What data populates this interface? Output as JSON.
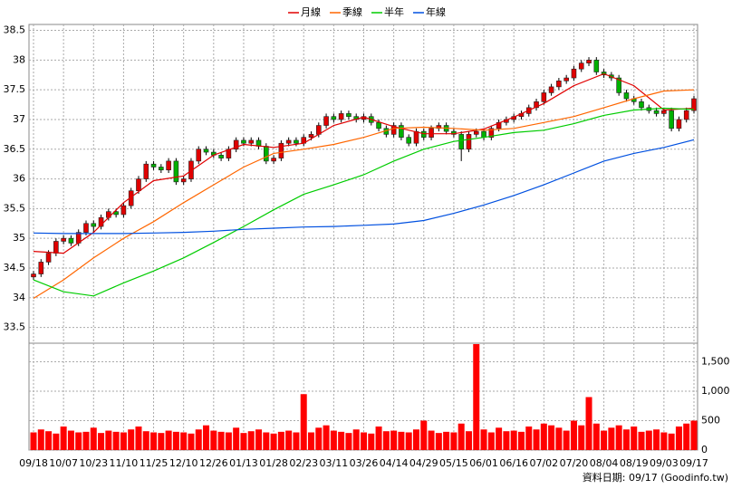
{
  "chart_data": {
    "type": "candlestick",
    "categories": [
      "09/18",
      "10/07",
      "10/23",
      "11/10",
      "11/25",
      "12/10",
      "12/26",
      "01/13",
      "01/28",
      "02/23",
      "03/11",
      "03/26",
      "04/14",
      "04/29",
      "05/15",
      "06/01",
      "06/16",
      "07/02",
      "07/20",
      "08/04",
      "08/19",
      "09/03",
      "09/17"
    ],
    "open": [
      34.35,
      34.4,
      34.6,
      34.75,
      34.95,
      35.0,
      34.92,
      35.1,
      35.25,
      35.2,
      35.35,
      35.45,
      35.4,
      35.55,
      35.8,
      36.0,
      36.25,
      36.2,
      36.15,
      36.3,
      35.95,
      36.0,
      36.3,
      36.5,
      36.45,
      36.4,
      36.35,
      36.5,
      36.65,
      36.6,
      36.65,
      36.55,
      36.3,
      36.35,
      36.6,
      36.65,
      36.6,
      36.7,
      36.75,
      36.9,
      37.05,
      37.0,
      37.1,
      37.05,
      37.0,
      37.05,
      36.95,
      36.85,
      36.75,
      36.9,
      36.7,
      36.6,
      36.8,
      36.7,
      36.85,
      36.9,
      36.8,
      36.75,
      36.5,
      36.75,
      36.8,
      36.7,
      36.85,
      36.95,
      37.0,
      37.05,
      37.1,
      37.2,
      37.3,
      37.45,
      37.55,
      37.65,
      37.7,
      37.85,
      37.95,
      38.0,
      37.8,
      37.75,
      37.7,
      37.45,
      37.35,
      37.3,
      37.2,
      37.15,
      37.1,
      37.15,
      36.85,
      37.0,
      37.15
    ],
    "high": [
      34.45,
      34.65,
      34.8,
      35.0,
      35.05,
      35.05,
      35.15,
      35.3,
      35.3,
      35.4,
      35.5,
      35.5,
      35.6,
      35.85,
      36.05,
      36.3,
      36.3,
      36.25,
      36.35,
      36.35,
      36.05,
      36.35,
      36.55,
      36.55,
      36.5,
      36.45,
      36.55,
      36.7,
      36.7,
      36.7,
      36.7,
      36.6,
      36.4,
      36.65,
      36.7,
      36.7,
      36.75,
      36.8,
      36.95,
      37.1,
      37.1,
      37.15,
      37.15,
      37.1,
      37.1,
      37.1,
      37.0,
      36.9,
      36.95,
      36.95,
      36.75,
      36.85,
      36.85,
      36.9,
      36.95,
      36.95,
      36.85,
      36.8,
      36.8,
      36.85,
      36.85,
      36.9,
      37.0,
      37.05,
      37.1,
      37.15,
      37.25,
      37.35,
      37.5,
      37.6,
      37.7,
      37.75,
      37.9,
      38.0,
      38.05,
      38.05,
      37.85,
      37.8,
      37.75,
      37.5,
      37.4,
      37.35,
      37.25,
      37.2,
      37.2,
      37.2,
      37.05,
      37.2,
      37.4
    ],
    "low": [
      34.3,
      34.35,
      34.55,
      34.7,
      34.9,
      34.87,
      34.87,
      35.05,
      35.1,
      35.15,
      35.3,
      35.35,
      35.35,
      35.5,
      35.75,
      35.95,
      36.15,
      36.1,
      36.1,
      35.9,
      35.9,
      35.95,
      36.25,
      36.4,
      36.35,
      36.3,
      36.3,
      36.45,
      36.55,
      36.55,
      36.5,
      36.25,
      36.25,
      36.3,
      36.55,
      36.55,
      36.55,
      36.65,
      36.7,
      36.85,
      36.95,
      36.95,
      37.0,
      36.95,
      36.95,
      36.9,
      36.8,
      36.7,
      36.7,
      36.65,
      36.55,
      36.55,
      36.65,
      36.65,
      36.8,
      36.75,
      36.7,
      36.3,
      36.45,
      36.7,
      36.65,
      36.65,
      36.8,
      36.9,
      36.95,
      37.0,
      37.05,
      37.15,
      37.25,
      37.4,
      37.5,
      37.6,
      37.65,
      37.8,
      37.9,
      37.75,
      37.7,
      37.65,
      37.4,
      37.3,
      37.25,
      37.15,
      37.1,
      37.05,
      37.05,
      36.8,
      36.8,
      36.95,
      37.1
    ],
    "close": [
      34.4,
      34.6,
      34.75,
      34.95,
      35.0,
      34.92,
      35.1,
      35.25,
      35.2,
      35.35,
      35.45,
      35.4,
      35.55,
      35.8,
      36.0,
      36.25,
      36.2,
      36.15,
      36.3,
      35.95,
      36.0,
      36.3,
      36.5,
      36.45,
      36.4,
      36.35,
      36.5,
      36.65,
      36.6,
      36.65,
      36.55,
      36.3,
      36.35,
      36.6,
      36.65,
      36.6,
      36.7,
      36.75,
      36.9,
      37.05,
      37.0,
      37.1,
      37.05,
      37.0,
      37.05,
      36.95,
      36.85,
      36.75,
      36.9,
      36.7,
      36.6,
      36.8,
      36.7,
      36.85,
      36.9,
      36.8,
      36.75,
      36.5,
      36.75,
      36.8,
      36.7,
      36.85,
      36.95,
      37.0,
      37.05,
      37.1,
      37.2,
      37.3,
      37.45,
      37.55,
      37.65,
      37.7,
      37.85,
      37.95,
      38.0,
      37.8,
      37.75,
      37.7,
      37.45,
      37.35,
      37.3,
      37.2,
      37.15,
      37.1,
      37.15,
      36.85,
      37.0,
      37.15,
      37.35
    ],
    "volume": [
      300,
      350,
      320,
      280,
      400,
      330,
      300,
      310,
      380,
      290,
      330,
      310,
      300,
      350,
      400,
      320,
      300,
      290,
      330,
      310,
      300,
      280,
      350,
      420,
      330,
      310,
      300,
      380,
      290,
      320,
      350,
      300,
      280,
      310,
      330,
      300,
      950,
      300,
      380,
      420,
      330,
      310,
      290,
      350,
      300,
      280,
      400,
      320,
      330,
      310,
      300,
      350,
      500,
      330,
      290,
      310,
      300,
      450,
      320,
      1800,
      350,
      300,
      380,
      320,
      330,
      310,
      400,
      350,
      450,
      420,
      380,
      330,
      500,
      420,
      900,
      450,
      330,
      380,
      420,
      350,
      400,
      310,
      330,
      350,
      300,
      280,
      400,
      450,
      500
    ],
    "up_color": "#e00000",
    "down_color": "#00b000",
    "volume_color": "#ff0000",
    "series": [
      {
        "name": "月線",
        "color": "#e00000",
        "values": [
          34.78,
          34.75,
          35.1,
          35.6,
          35.97,
          36.05,
          36.4,
          36.58,
          36.53,
          36.6,
          36.9,
          37.04,
          36.88,
          36.76,
          36.76,
          36.84,
          37.04,
          37.27,
          37.57,
          37.77,
          37.57,
          37.16,
          37.19
        ]
      },
      {
        "name": "季線",
        "color": "#ff6600",
        "values": [
          33.99,
          34.3,
          34.67,
          35.0,
          35.28,
          35.6,
          35.9,
          36.2,
          36.43,
          36.5,
          36.58,
          36.7,
          36.85,
          36.87,
          36.85,
          36.82,
          36.85,
          36.95,
          37.05,
          37.2,
          37.35,
          37.48,
          37.5
        ]
      },
      {
        "name": "半年",
        "color": "#00cc00",
        "values": [
          34.3,
          34.1,
          34.03,
          34.25,
          34.45,
          34.67,
          34.93,
          35.2,
          35.48,
          35.74,
          35.9,
          36.07,
          36.3,
          36.5,
          36.63,
          36.7,
          36.78,
          36.82,
          36.93,
          37.07,
          37.16,
          37.19,
          37.17
        ]
      },
      {
        "name": "年線",
        "color": "#0050e0",
        "values": [
          35.09,
          35.08,
          35.08,
          35.08,
          35.09,
          35.1,
          35.12,
          35.15,
          35.17,
          35.19,
          35.2,
          35.22,
          35.24,
          35.3,
          35.42,
          35.56,
          35.72,
          35.9,
          36.1,
          36.3,
          36.43,
          36.53,
          36.66
        ]
      }
    ],
    "ylim": [
      33.25,
      38.6
    ],
    "yticks": [
      33.5,
      34,
      34.5,
      35,
      35.5,
      36,
      36.5,
      37,
      37.5,
      38,
      38.5
    ],
    "y2lim": [
      0,
      1800
    ],
    "y2ticks": [
      0,
      500,
      {
        "value": 1000,
        "label": "1,000"
      },
      {
        "value": 1500,
        "label": "1,500"
      }
    ],
    "grid": true,
    "source": "資料日期: 09/17 (Goodinfo.tw)"
  }
}
